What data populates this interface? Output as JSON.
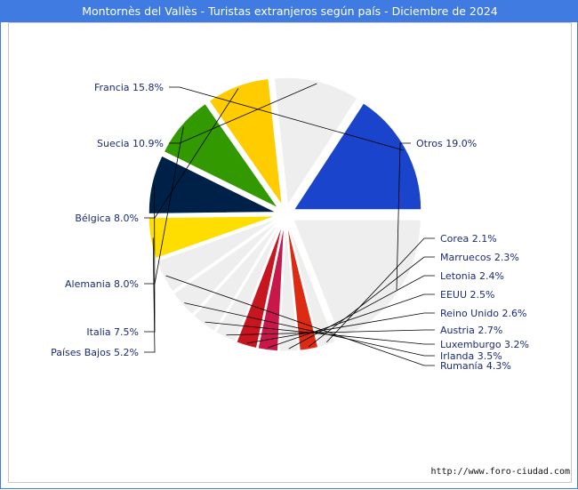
{
  "title": "Montornès del Vallès - Turistas extranjeros según país - Diciembre de 2024",
  "source": "http://www.foro-ciudad.com",
  "chart_data": {
    "type": "pie",
    "title": "Montornès del Vallès - Turistas extranjeros según país - Diciembre de 2024",
    "slices": [
      {
        "label": "Otros 19.0%",
        "name": "Otros",
        "value": 19.0,
        "color": "#eeeeee"
      },
      {
        "label": "Corea 2.1%",
        "name": "Corea",
        "value": 2.1,
        "color": "#eeeeee"
      },
      {
        "label": "Marruecos 2.3%",
        "name": "Marruecos",
        "value": 2.3,
        "color": "#dd2a13"
      },
      {
        "label": "Letonia 2.4%",
        "name": "Letonia",
        "value": 2.4,
        "color": "#eeeeee"
      },
      {
        "label": "EEUU 2.5%",
        "name": "EEUU",
        "value": 2.5,
        "color": "#c8184a"
      },
      {
        "label": "Reino Unido 2.6%",
        "name": "Reino Unido",
        "value": 2.6,
        "color": "#c7161f"
      },
      {
        "label": "Austria 2.7%",
        "name": "Austria",
        "value": 2.7,
        "color": "#eeeeee"
      },
      {
        "label": "Luxemburgo 3.2%",
        "name": "Luxemburgo",
        "value": 3.2,
        "color": "#eeeeee"
      },
      {
        "label": "Irlanda 3.5%",
        "name": "Irlanda",
        "value": 3.5,
        "color": "#eeeeee"
      },
      {
        "label": "Rumanía 4.3%",
        "name": "Rumanía",
        "value": 4.3,
        "color": "#eeeeee"
      },
      {
        "label": "Países Bajos 5.2%",
        "name": "Países Bajos",
        "value": 5.2,
        "color": "#fedd00"
      },
      {
        "label": "Italia 7.5%",
        "name": "Italia",
        "value": 7.5,
        "color": "#002147"
      },
      {
        "label": "Alemania 8.0%",
        "name": "Alemania",
        "value": 8.0,
        "color": "#339900"
      },
      {
        "label": "Bélgica 8.0%",
        "name": "Bélgica",
        "value": 8.0,
        "color": "#ffcc00"
      },
      {
        "label": "Suecia 10.9%",
        "name": "Suecia",
        "value": 10.9,
        "color": "#eeeeee"
      },
      {
        "label": "Francia 15.8%",
        "name": "Francia",
        "value": 15.8,
        "color": "#1a44cc"
      }
    ]
  }
}
